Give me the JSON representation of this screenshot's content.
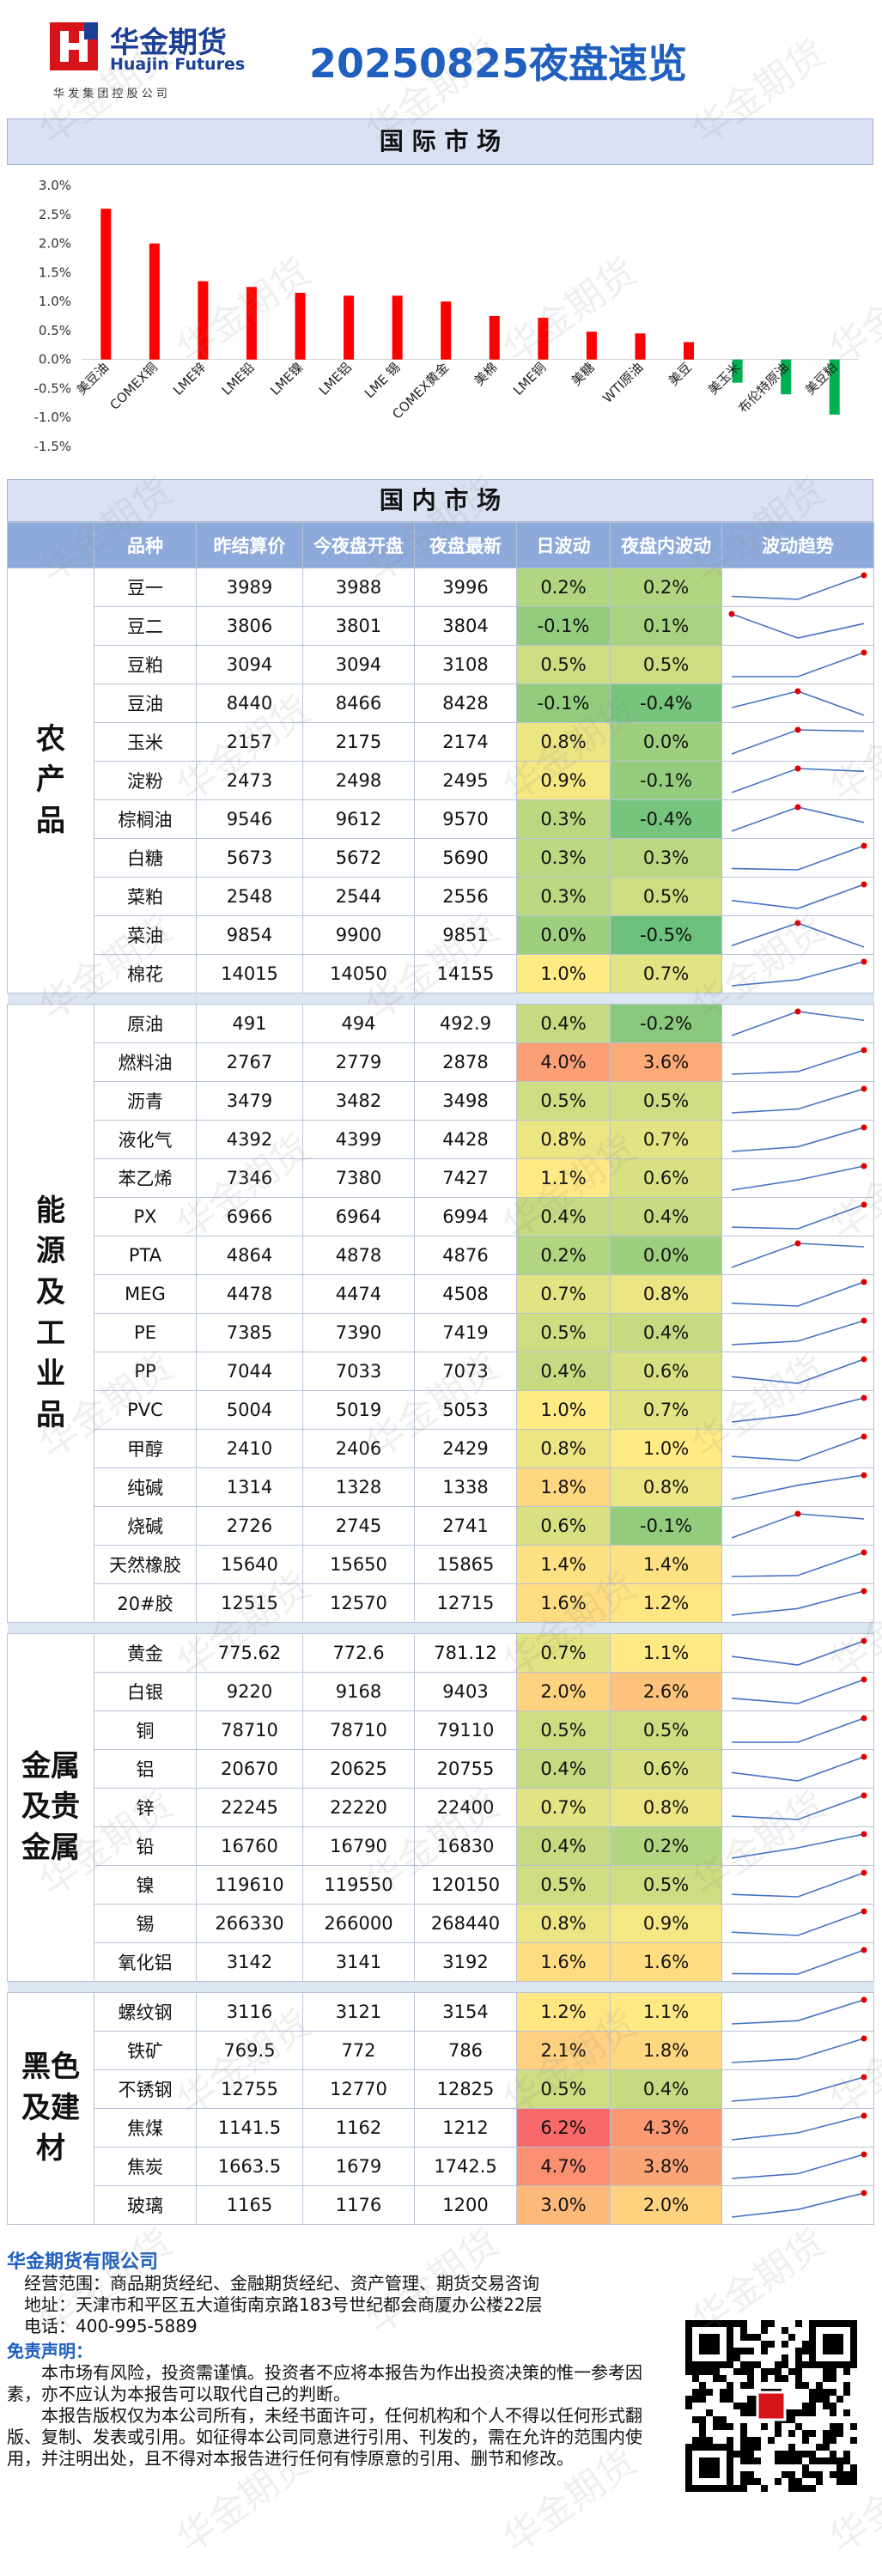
{
  "header": {
    "logo_cn": "华金期货",
    "logo_en": "Huajin Futures",
    "logo_sub": "华 发 集 团 控 股 公 司",
    "title": "20250825夜盘速览"
  },
  "watermark": "华金期货",
  "chart_data": {
    "type": "bar",
    "title": "国 际 市 场",
    "categories": [
      "美豆油",
      "COMEX铜",
      "LME锌",
      "LME铅",
      "LME镍",
      "LME铝",
      "LME 锡",
      "COMEX黄金",
      "美棉",
      "LME铜",
      "美糖",
      "WTI原油",
      "美豆",
      "美玉米",
      "布伦特原油",
      "美豆粕"
    ],
    "values": [
      2.6,
      2.0,
      1.35,
      1.25,
      1.15,
      1.1,
      1.1,
      1.0,
      0.75,
      0.72,
      0.48,
      0.45,
      0.3,
      -0.4,
      -0.6,
      -0.95
    ],
    "colors": {
      "positive": "#ff0000",
      "negative": "#00b050"
    },
    "ylim": [
      -1.5,
      3.0
    ],
    "yticks": [
      {
        "value": -1.5,
        "label": "-1.5%"
      },
      {
        "value": -1.0,
        "label": "-1.0%"
      },
      {
        "value": -0.5,
        "label": "-0.5%"
      },
      {
        "value": 0,
        "label": "0.0%"
      },
      {
        "value": 0.5,
        "label": "0.5%"
      },
      {
        "value": 1.0,
        "label": "1.0%"
      },
      {
        "value": 1.5,
        "label": "1.5%"
      },
      {
        "value": 2.0,
        "label": "2.0%"
      },
      {
        "value": 2.5,
        "label": "2.5%"
      },
      {
        "value": 3.0,
        "label": "3.0%"
      }
    ]
  },
  "table": {
    "title": "国 内 市 场",
    "columns": [
      "品种",
      "昨结算价",
      "今夜盘开盘",
      "夜盘最新",
      "日波动",
      "夜盘内波动",
      "波动趋势"
    ],
    "groups": [
      {
        "name": "农产品",
        "rows": [
          [
            "豆一",
            3989,
            3988,
            3996,
            "0.2%",
            "0.2%"
          ],
          [
            "豆二",
            3806,
            3801,
            3804,
            "-0.1%",
            "0.1%"
          ],
          [
            "豆粕",
            3094,
            3094,
            3108,
            "0.5%",
            "0.5%"
          ],
          [
            "豆油",
            8440,
            8466,
            8428,
            "-0.1%",
            "-0.4%"
          ],
          [
            "玉米",
            2157,
            2175,
            2174,
            "0.8%",
            "0.0%"
          ],
          [
            "淀粉",
            2473,
            2498,
            2495,
            "0.9%",
            "-0.1%"
          ],
          [
            "棕榈油",
            9546,
            9612,
            9570,
            "0.3%",
            "-0.4%"
          ],
          [
            "白糖",
            5673,
            5672,
            5690,
            "0.3%",
            "0.3%"
          ],
          [
            "菜粕",
            2548,
            2544,
            2556,
            "0.3%",
            "0.5%"
          ],
          [
            "菜油",
            9854,
            9900,
            9851,
            "0.0%",
            "-0.5%"
          ],
          [
            "棉花",
            14015,
            14050,
            14155,
            "1.0%",
            "0.7%"
          ]
        ]
      },
      {
        "name": "能源及工业品",
        "rows": [
          [
            "原油",
            491,
            494,
            492.9,
            "0.4%",
            "-0.2%"
          ],
          [
            "燃料油",
            2767,
            2779,
            2878,
            "4.0%",
            "3.6%"
          ],
          [
            "沥青",
            3479,
            3482,
            3498,
            "0.5%",
            "0.5%"
          ],
          [
            "液化气",
            4392,
            4399,
            4428,
            "0.8%",
            "0.7%"
          ],
          [
            "苯乙烯",
            7346,
            7380,
            7427,
            "1.1%",
            "0.6%"
          ],
          [
            "PX",
            6966,
            6964,
            6994,
            "0.4%",
            "0.4%"
          ],
          [
            "PTA",
            4864,
            4878,
            4876,
            "0.2%",
            "0.0%"
          ],
          [
            "MEG",
            4478,
            4474,
            4508,
            "0.7%",
            "0.8%"
          ],
          [
            "PE",
            7385,
            7390,
            7419,
            "0.5%",
            "0.4%"
          ],
          [
            "PP",
            7044,
            7033,
            7073,
            "0.4%",
            "0.6%"
          ],
          [
            "PVC",
            5004,
            5019,
            5053,
            "1.0%",
            "0.7%"
          ],
          [
            "甲醇",
            2410,
            2406,
            2429,
            "0.8%",
            "1.0%"
          ],
          [
            "纯碱",
            1314,
            1328,
            1338,
            "1.8%",
            "0.8%"
          ],
          [
            "烧碱",
            2726,
            2745,
            2741,
            "0.6%",
            "-0.1%"
          ],
          [
            "天然橡胶",
            15640,
            15650,
            15865,
            "1.4%",
            "1.4%"
          ],
          [
            "20#胶",
            12515,
            12570,
            12715,
            "1.6%",
            "1.2%"
          ]
        ]
      },
      {
        "name": "金属及贵金属",
        "rows": [
          [
            "黄金",
            775.62,
            772.6,
            781.12,
            "0.7%",
            "1.1%"
          ],
          [
            "白银",
            9220,
            9168,
            9403,
            "2.0%",
            "2.6%"
          ],
          [
            "铜",
            78710,
            78710,
            79110,
            "0.5%",
            "0.5%"
          ],
          [
            "铝",
            20670,
            20625,
            20755,
            "0.4%",
            "0.6%"
          ],
          [
            "锌",
            22245,
            22220,
            22400,
            "0.7%",
            "0.8%"
          ],
          [
            "铅",
            16760,
            16790,
            16830,
            "0.4%",
            "0.2%"
          ],
          [
            "镍",
            119610,
            119550,
            120150,
            "0.5%",
            "0.5%"
          ],
          [
            "锡",
            266330,
            266000,
            268440,
            "0.8%",
            "0.9%"
          ],
          [
            "氧化铝",
            3142,
            3141,
            3192,
            "1.6%",
            "1.6%"
          ]
        ]
      },
      {
        "name": "黑色及建材",
        "rows": [
          [
            "螺纹钢",
            3116,
            3121,
            3154,
            "1.2%",
            "1.1%"
          ],
          [
            "铁矿",
            769.5,
            772,
            786,
            "2.1%",
            "1.8%"
          ],
          [
            "不锈钢",
            12755,
            12770,
            12825,
            "0.5%",
            "0.4%"
          ],
          [
            "焦煤",
            1141.5,
            1162,
            1212,
            "6.2%",
            "4.3%"
          ],
          [
            "焦炭",
            1663.5,
            1679,
            1742.5,
            "4.7%",
            "3.8%"
          ],
          [
            "玻璃",
            1165,
            1176,
            1200,
            "3.0%",
            "2.0%"
          ]
        ]
      }
    ]
  },
  "footer": {
    "company": "华金期货有限公司",
    "scope": "经营范围：商品期货经纪、金融期货经纪、资产管理、期货交易咨询",
    "address": "地址：天津市和平区五大道街南京路183号世纪都会商厦办公楼22层",
    "phone": "电话：400-995-5889",
    "disclaimer_title": "免责声明：",
    "disclaimer": [
      "本市场有风险，投资需谨慎。投资者不应将本报告为作出投资决策的惟一参考因素，亦不应认为本报告可以取代自己的判断。",
      "本报告版权仅为本公司所有，未经书面许可，任何机构和个人不得以任何形式翻版、复制、发表或引用。如征得本公司同意进行引用、刊发的，需在允许的范围内使用，并注明出处，且不得对本报告进行任何有悖原意的引用、删节和修改。"
    ]
  }
}
